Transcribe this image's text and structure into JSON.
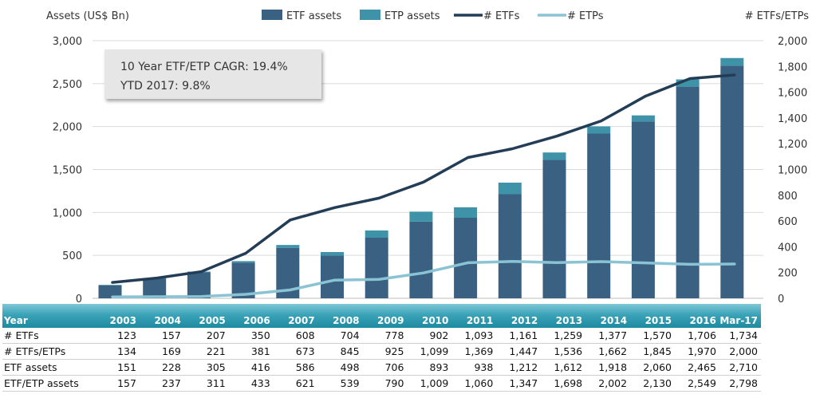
{
  "chart_data": {
    "type": "bar",
    "title": "",
    "ylabel": "Assets (US$ Bn)",
    "y2label": "# ETFs/ETPs",
    "ylim": [
      0,
      3000
    ],
    "y2lim": [
      0,
      2000
    ],
    "yticks": [
      "0",
      "500",
      "1,000",
      "1,500",
      "2,000",
      "2,500",
      "3,000"
    ],
    "y2ticks": [
      "0",
      "200",
      "400",
      "600",
      "800",
      "1,000",
      "1,200",
      "1,400",
      "1,600",
      "1,800",
      "2,000"
    ],
    "legend": [
      "ETF assets",
      "ETP assets",
      "# ETFs",
      "# ETPs"
    ],
    "legend_position": "top",
    "categories": [
      "2003",
      "2004",
      "2005",
      "2006",
      "2007",
      "2008",
      "2009",
      "2010",
      "2011",
      "2012",
      "2013",
      "2014",
      "2015",
      "2016",
      "Mar-17"
    ],
    "series": [
      {
        "name": "ETF assets",
        "kind": "stacked-bar",
        "axis": "left",
        "color": "#3b6182",
        "values": [
          151,
          228,
          305,
          416,
          586,
          498,
          706,
          893,
          938,
          1212,
          1612,
          1918,
          2060,
          2465,
          2710
        ]
      },
      {
        "name": "ETP assets",
        "kind": "stacked-bar",
        "axis": "left",
        "color": "#3f93a8",
        "values": [
          6,
          9,
          6,
          17,
          35,
          41,
          84,
          116,
          122,
          135,
          86,
          84,
          70,
          84,
          88
        ]
      },
      {
        "name": "# ETFs",
        "kind": "line",
        "axis": "right",
        "color": "#243d57",
        "values": [
          123,
          157,
          207,
          350,
          608,
          704,
          778,
          902,
          1093,
          1161,
          1259,
          1377,
          1570,
          1706,
          1734
        ]
      },
      {
        "name": "# ETPs",
        "kind": "line",
        "axis": "right",
        "color": "#8ac4d4",
        "values": [
          11,
          12,
          14,
          31,
          65,
          141,
          147,
          197,
          276,
          286,
          277,
          285,
          275,
          264,
          266
        ]
      }
    ],
    "annotation": {
      "line1": "10 Year ETF/ETP CAGR: 19.4%",
      "line2": "YTD 2017: 9.8%"
    }
  },
  "table": {
    "header_label": "Year",
    "years": [
      "2003",
      "2004",
      "2005",
      "2006",
      "2007",
      "2008",
      "2009",
      "2010",
      "2011",
      "2012",
      "2013",
      "2014",
      "2015",
      "2016",
      "Mar-17"
    ],
    "rows": [
      {
        "label": "# ETFs",
        "values": [
          "123",
          "157",
          "207",
          "350",
          "608",
          "704",
          "778",
          "902",
          "1,093",
          "1,161",
          "1,259",
          "1,377",
          "1,570",
          "1,706",
          "1,734"
        ]
      },
      {
        "label": "# ETFs/ETPs",
        "values": [
          "134",
          "169",
          "221",
          "381",
          "673",
          "845",
          "925",
          "1,099",
          "1,369",
          "1,447",
          "1,536",
          "1,662",
          "1,845",
          "1,970",
          "2,000"
        ]
      },
      {
        "label": "ETF assets",
        "values": [
          "151",
          "228",
          "305",
          "416",
          "586",
          "498",
          "706",
          "893",
          "938",
          "1,212",
          "1,612",
          "1,918",
          "2,060",
          "2,465",
          "2,710"
        ]
      },
      {
        "label": "ETF/ETP assets",
        "values": [
          "157",
          "237",
          "311",
          "433",
          "621",
          "539",
          "790",
          "1,009",
          "1,060",
          "1,347",
          "1,698",
          "2,002",
          "2,130",
          "2,549",
          "2,798"
        ]
      }
    ]
  }
}
